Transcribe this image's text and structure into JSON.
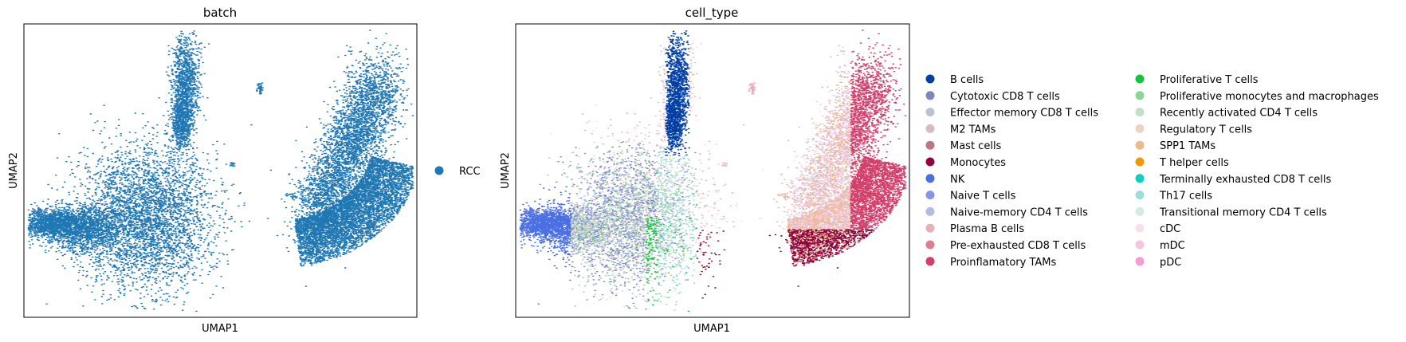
{
  "chart_data": [
    {
      "type": "scatter",
      "title": "batch",
      "xlabel": "UMAP1",
      "ylabel": "UMAP2",
      "grid": false,
      "ticks": false,
      "legend_placement": "right",
      "legend": [
        {
          "label": "RCC",
          "color": "#1f77b4"
        }
      ]
    },
    {
      "type": "scatter",
      "title": "cell_type",
      "xlabel": "UMAP1",
      "ylabel": "UMAP2",
      "grid": false,
      "ticks": false,
      "legend_placement": "right",
      "legend": [
        {
          "label": "B cells",
          "color": "#023fa5"
        },
        {
          "label": "Cytotoxic CD8 T cells",
          "color": "#7d87b9"
        },
        {
          "label": "Effector memory CD8 T cells",
          "color": "#bec1d4"
        },
        {
          "label": "M2 TAMs",
          "color": "#d6bcc0"
        },
        {
          "label": "Mast cells",
          "color": "#bb7784"
        },
        {
          "label": "Monocytes",
          "color": "#8e063b"
        },
        {
          "label": "NK",
          "color": "#4a6fe3"
        },
        {
          "label": "Naive T cells",
          "color": "#8595e1"
        },
        {
          "label": "Naive-memory CD4 T cells",
          "color": "#b5bbe3"
        },
        {
          "label": "Plasma B cells",
          "color": "#e6afb9"
        },
        {
          "label": "Pre-exhausted CD8 T cells",
          "color": "#e07b91"
        },
        {
          "label": "Proinflamatory TAMs",
          "color": "#d33f6a"
        },
        {
          "label": "Proliferative T cells",
          "color": "#11c638"
        },
        {
          "label": "Proliferative monocytes and macrophages",
          "color": "#8dd593"
        },
        {
          "label": "Recently activated CD4 T cells",
          "color": "#c6dec7"
        },
        {
          "label": "Regulatory T cells",
          "color": "#ead3c6"
        },
        {
          "label": "SPP1 TAMs",
          "color": "#f0b98d"
        },
        {
          "label": "T helper cells",
          "color": "#ef9708"
        },
        {
          "label": "Terminally exhausted CD8 T cells",
          "color": "#0fcfc0"
        },
        {
          "label": "Th17 cells",
          "color": "#9cded6"
        },
        {
          "label": "Transitional memory CD4 T cells",
          "color": "#d5eae7"
        },
        {
          "label": "cDC",
          "color": "#f3e1eb"
        },
        {
          "label": "mDC",
          "color": "#f6c4e1"
        },
        {
          "label": "pDC",
          "color": "#f79cd4"
        }
      ]
    }
  ]
}
